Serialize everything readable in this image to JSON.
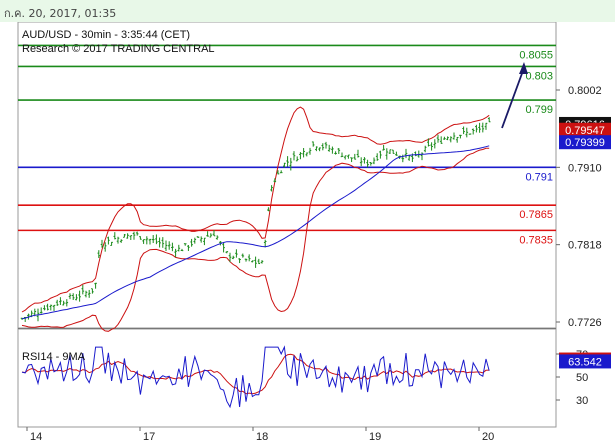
{
  "header": {
    "datetime": "ก.ค. 20, 2017, 01:35"
  },
  "chart_data": {
    "type": "candlestick",
    "title": "AUD/USD - 30min - 3:35:44 (CET)",
    "subtitle": "Research © 2017 TRADING CENTRAL",
    "price_axis": {
      "ticks": [
        "0.8002",
        "0.7910",
        "0.7818",
        "0.7726"
      ],
      "tick_values": [
        0.8002,
        0.791,
        0.7818,
        0.7726
      ],
      "range": [
        0.77,
        0.809
      ]
    },
    "x_ticks": [
      "14",
      "17",
      "18",
      "19",
      "20"
    ],
    "levels": [
      {
        "label": "0.8055",
        "value": 0.8055,
        "color": "#1a8a1a"
      },
      {
        "label": "0.803",
        "value": 0.803,
        "color": "#1a8a1a"
      },
      {
        "label": "0.799",
        "value": 0.799,
        "color": "#1a8a1a"
      },
      {
        "label": "0.791",
        "value": 0.791,
        "color": "#1a1acc"
      },
      {
        "label": "0.7865",
        "value": 0.7865,
        "color": "#dd1111"
      },
      {
        "label": "0.7835",
        "value": 0.7835,
        "color": "#dd1111"
      }
    ],
    "price_badges": [
      {
        "label": "0.79616",
        "value": 0.79616,
        "color": "#111111"
      },
      {
        "label": "0.79547",
        "value": 0.79547,
        "color": "#cc1111"
      },
      {
        "label": "0.79399",
        "value": 0.79399,
        "color": "#1a1acc"
      }
    ],
    "rsi": {
      "title": "RSI14 - 9MA",
      "ticks": [
        "70",
        "50",
        "30"
      ],
      "tick_values": [
        70,
        50,
        30
      ],
      "range": [
        20,
        80
      ],
      "badges": [
        {
          "label": "65.1924",
          "value": 65.19,
          "color": "#cc1111"
        },
        {
          "label": "63.542",
          "value": 63.54,
          "color": "#1a1acc"
        }
      ]
    },
    "colors": {
      "candles": "#1a8a1a",
      "bands": "#cc1111",
      "ma": "#1a1acc",
      "arrow": "#1a1a66",
      "rsi": "#1a1acc",
      "rsi_ma": "#cc1111"
    }
  }
}
